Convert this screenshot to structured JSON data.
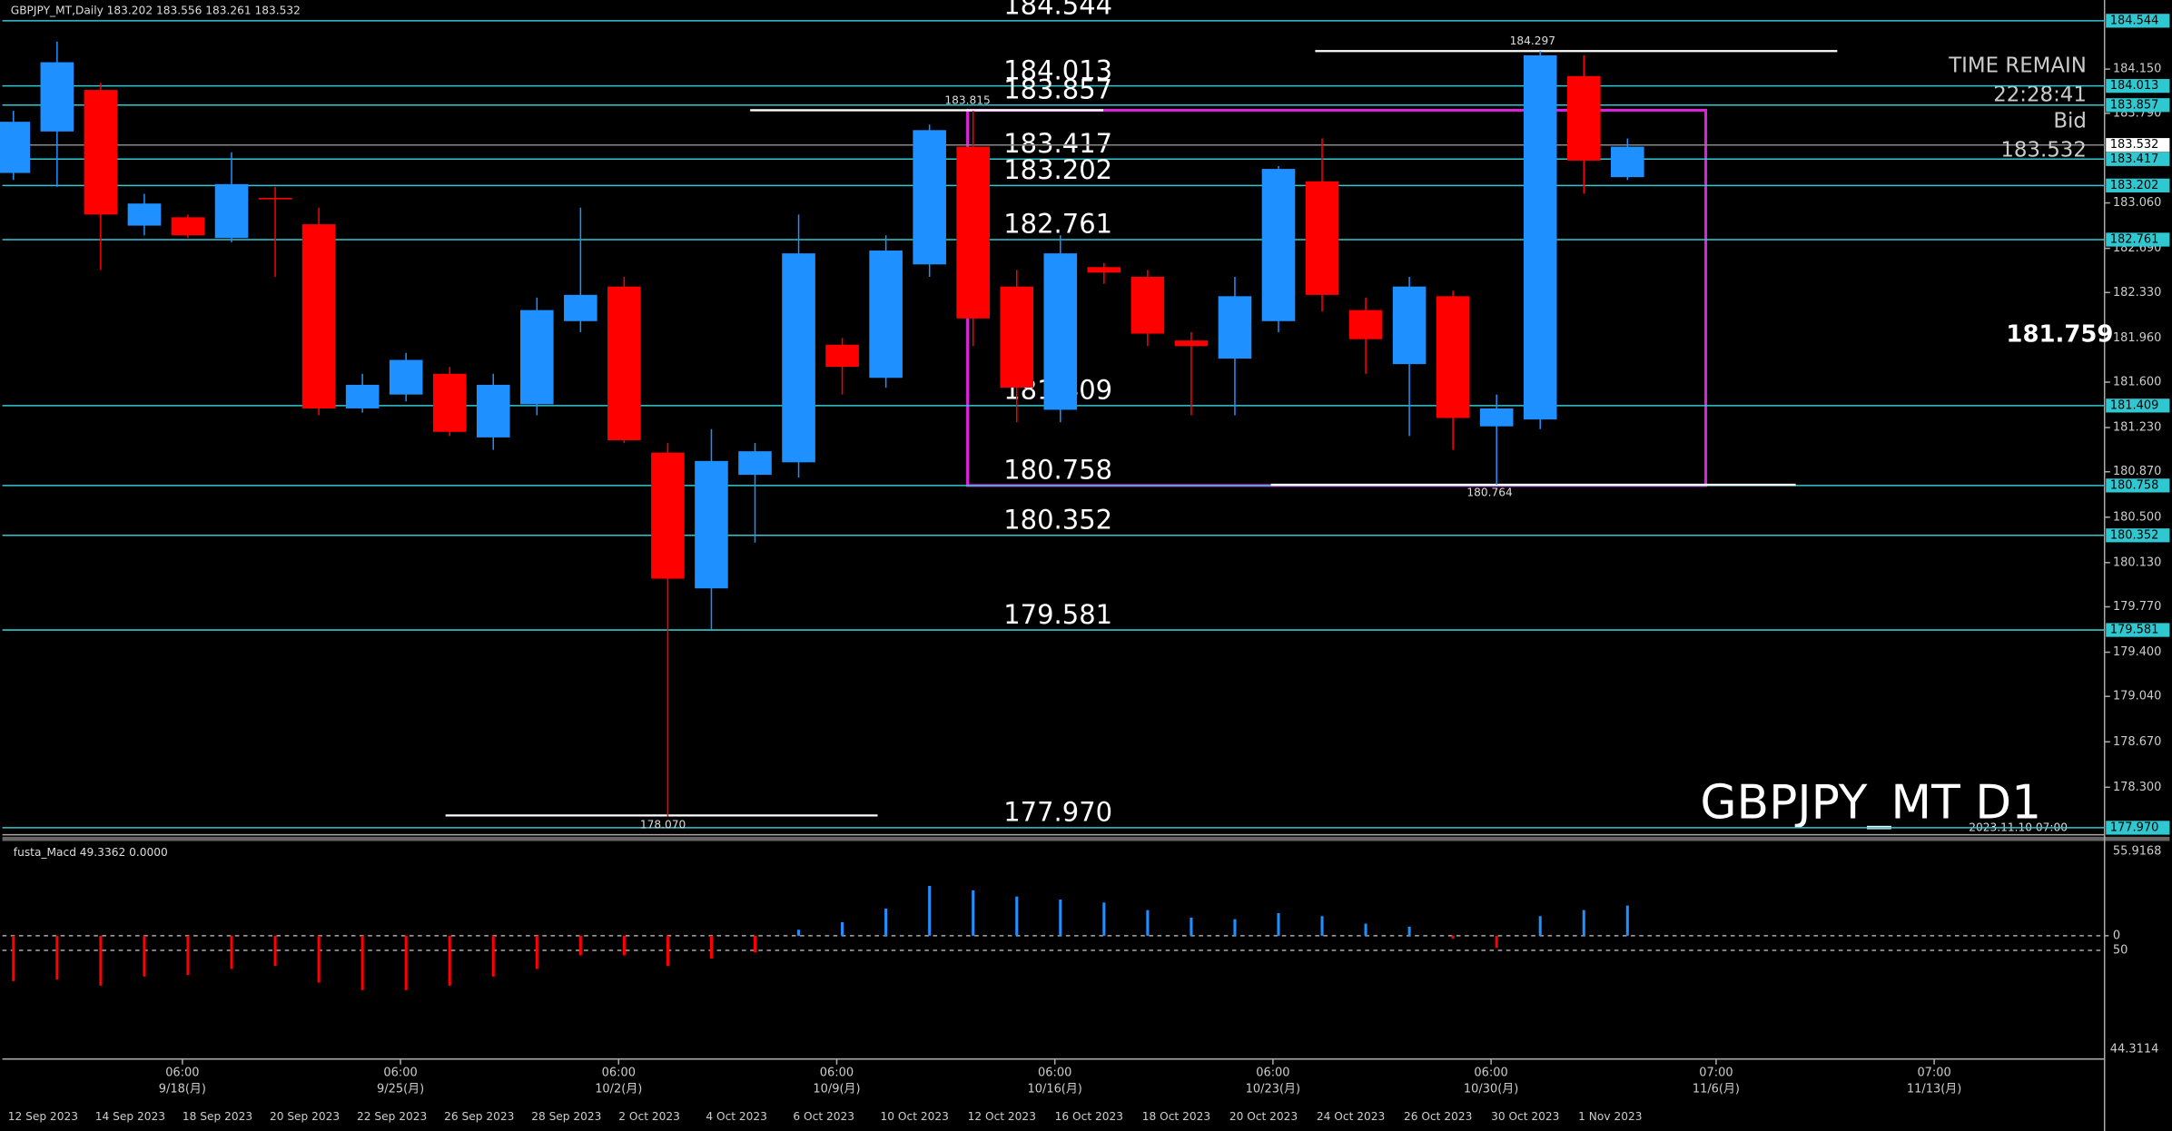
{
  "header": "GBPJPY_MT,Daily 183.202 183.556 183.261 183.532",
  "chart_data": {
    "type": "candlestick",
    "symbol_label": "GBPJPY_MT D1",
    "time_label": "2023.11.10 07:00",
    "bull_color": "#1e90ff",
    "bear_color": "#ff0000",
    "open": [
      183.304,
      183.642,
      183.98,
      182.875,
      182.943,
      182.774,
      183.101,
      182.886,
      181.386,
      181.499,
      181.668,
      181.15,
      181.42,
      182.097,
      182.379,
      181.026,
      179.92,
      180.845,
      180.947,
      181.905,
      181.635,
      182.559,
      183.518,
      182.379,
      181.375,
      182.537,
      182.458,
      181.939,
      181.792,
      182.097,
      183.236,
      182.187,
      181.747,
      182.3,
      181.24,
      181.296,
      184.093,
      183.27
    ],
    "high": [
      183.811,
      184.375,
      184.037,
      183.134,
      182.965,
      183.473,
      183.191,
      183.022,
      181.668,
      181.838,
      181.724,
      181.668,
      182.289,
      183.022,
      182.458,
      181.104,
      181.217,
      181.104,
      182.965,
      181.96,
      182.796,
      183.698,
      183.811,
      182.514,
      182.796,
      182.571,
      182.514,
      182.007,
      182.458,
      183.36,
      183.585,
      182.289,
      182.458,
      182.345,
      181.499,
      184.297,
      184.262,
      183.585
    ],
    "low": [
      183.247,
      183.191,
      182.514,
      182.796,
      182.774,
      182.74,
      182.458,
      181.33,
      181.352,
      181.443,
      181.161,
      181.048,
      181.33,
      182.007,
      181.104,
      178.06,
      179.582,
      180.293,
      180.823,
      181.499,
      181.555,
      182.458,
      181.894,
      181.274,
      181.274,
      182.401,
      181.894,
      181.33,
      181.33,
      182.007,
      182.176,
      181.668,
      181.161,
      181.048,
      180.764,
      181.217,
      183.134,
      183.247
    ],
    "close": [
      183.721,
      184.206,
      182.965,
      183.055,
      182.796,
      183.213,
      183.089,
      181.386,
      181.578,
      181.781,
      181.195,
      181.578,
      182.187,
      182.311,
      181.127,
      179.999,
      180.958,
      181.037,
      182.649,
      181.725,
      182.672,
      183.653,
      182.119,
      181.556,
      182.649,
      182.492,
      181.995,
      181.894,
      182.3,
      183.337,
      182.311,
      181.95,
      182.379,
      181.308,
      181.386,
      184.262,
      183.405,
      183.518
    ],
    "ylim": [
      177.913,
      184.713
    ],
    "yticks": [
      {
        "value": 184.15,
        "label": "184.150"
      },
      {
        "value": 183.79,
        "label": "183.790"
      },
      {
        "value": 183.06,
        "label": "183.060"
      },
      {
        "value": 182.69,
        "label": "182.690"
      },
      {
        "value": 182.33,
        "label": "182.330"
      },
      {
        "value": 181.96,
        "label": "181.960"
      },
      {
        "value": 181.6,
        "label": "181.600"
      },
      {
        "value": 181.23,
        "label": "181.230"
      },
      {
        "value": 180.87,
        "label": "180.870"
      },
      {
        "value": 180.5,
        "label": "180.500"
      },
      {
        "value": 180.13,
        "label": "180.130"
      },
      {
        "value": 179.77,
        "label": "179.770"
      },
      {
        "value": 179.4,
        "label": "179.400"
      },
      {
        "value": 179.04,
        "label": "179.040"
      },
      {
        "value": 178.67,
        "label": "178.670"
      },
      {
        "value": 178.3,
        "label": "178.300"
      }
    ],
    "level_color": "#30c8d0",
    "levels": [
      184.544,
      184.013,
      183.857,
      183.417,
      183.202,
      182.761,
      181.409,
      180.758,
      180.352,
      179.581,
      {
        "value": 177.97,
        "label": "177.970"
      }
    ],
    "bid": 183.532,
    "swing_lines": [
      184.297,
      183.815,
      180.764,
      {
        "value": 178.07,
        "label": "178.070"
      }
    ],
    "box": {
      "top": 183.815,
      "bottom": 180.758,
      "color": "#e020e0"
    },
    "side_value": 181.759,
    "info": {
      "time_remain_label": "TIME REMAIN",
      "time_remain": "22:28:41",
      "bid_label": "Bid"
    },
    "time_axis": [
      {
        "time": "06:00",
        "date": "9/18(月)"
      },
      {
        "time": "06:00",
        "date": "9/25(月)"
      },
      {
        "time": "06:00",
        "date": "10/2(月)"
      },
      {
        "time": "06:00",
        "date": "10/9(月)"
      },
      {
        "time": "06:00",
        "date": "10/16(月)"
      },
      {
        "time": "06:00",
        "date": "10/23(月)"
      },
      {
        "time": "06:00",
        "date": "10/30(月)"
      },
      {
        "time": "07:00",
        "date": "11/6(月)"
      },
      {
        "time": "07:00",
        "date": "11/13(月)"
      }
    ],
    "date_labels": [
      "12 Sep 2023",
      "14 Sep 2023",
      "18 Sep 2023",
      "20 Sep 2023",
      "22 Sep 2023",
      "26 Sep 2023",
      "28 Sep 2023",
      "2 Oct 2023",
      "4 Oct 2023",
      "6 Oct 2023",
      "10 Oct 2023",
      "12 Oct 2023",
      "16 Oct 2023",
      "18 Oct 2023",
      "20 Oct 2023",
      "24 Oct 2023",
      "26 Oct 2023",
      "30 Oct 2023",
      "1 Nov 2023"
    ],
    "macd": {
      "title": "fusta_Macd 49.3362 0.0000",
      "histogram": [
        -30,
        -29,
        -33,
        -27,
        -26,
        -22,
        -20,
        -31,
        -36,
        -36,
        -33,
        -27,
        -22,
        -13,
        -13,
        -20,
        -15,
        -11,
        4,
        9,
        18,
        33,
        30,
        26,
        24,
        22,
        17,
        12,
        11,
        15,
        13,
        8,
        6,
        -2,
        -8,
        13,
        17,
        20
      ],
      "ylim": [
        -81.6,
        62.3
      ],
      "yticks": [
        55.9168,
        0
      ],
      "y2lim": [
        0,
        100
      ],
      "y2ticks": [
        50
      ],
      "bottom_label": "44.3114"
    }
  }
}
